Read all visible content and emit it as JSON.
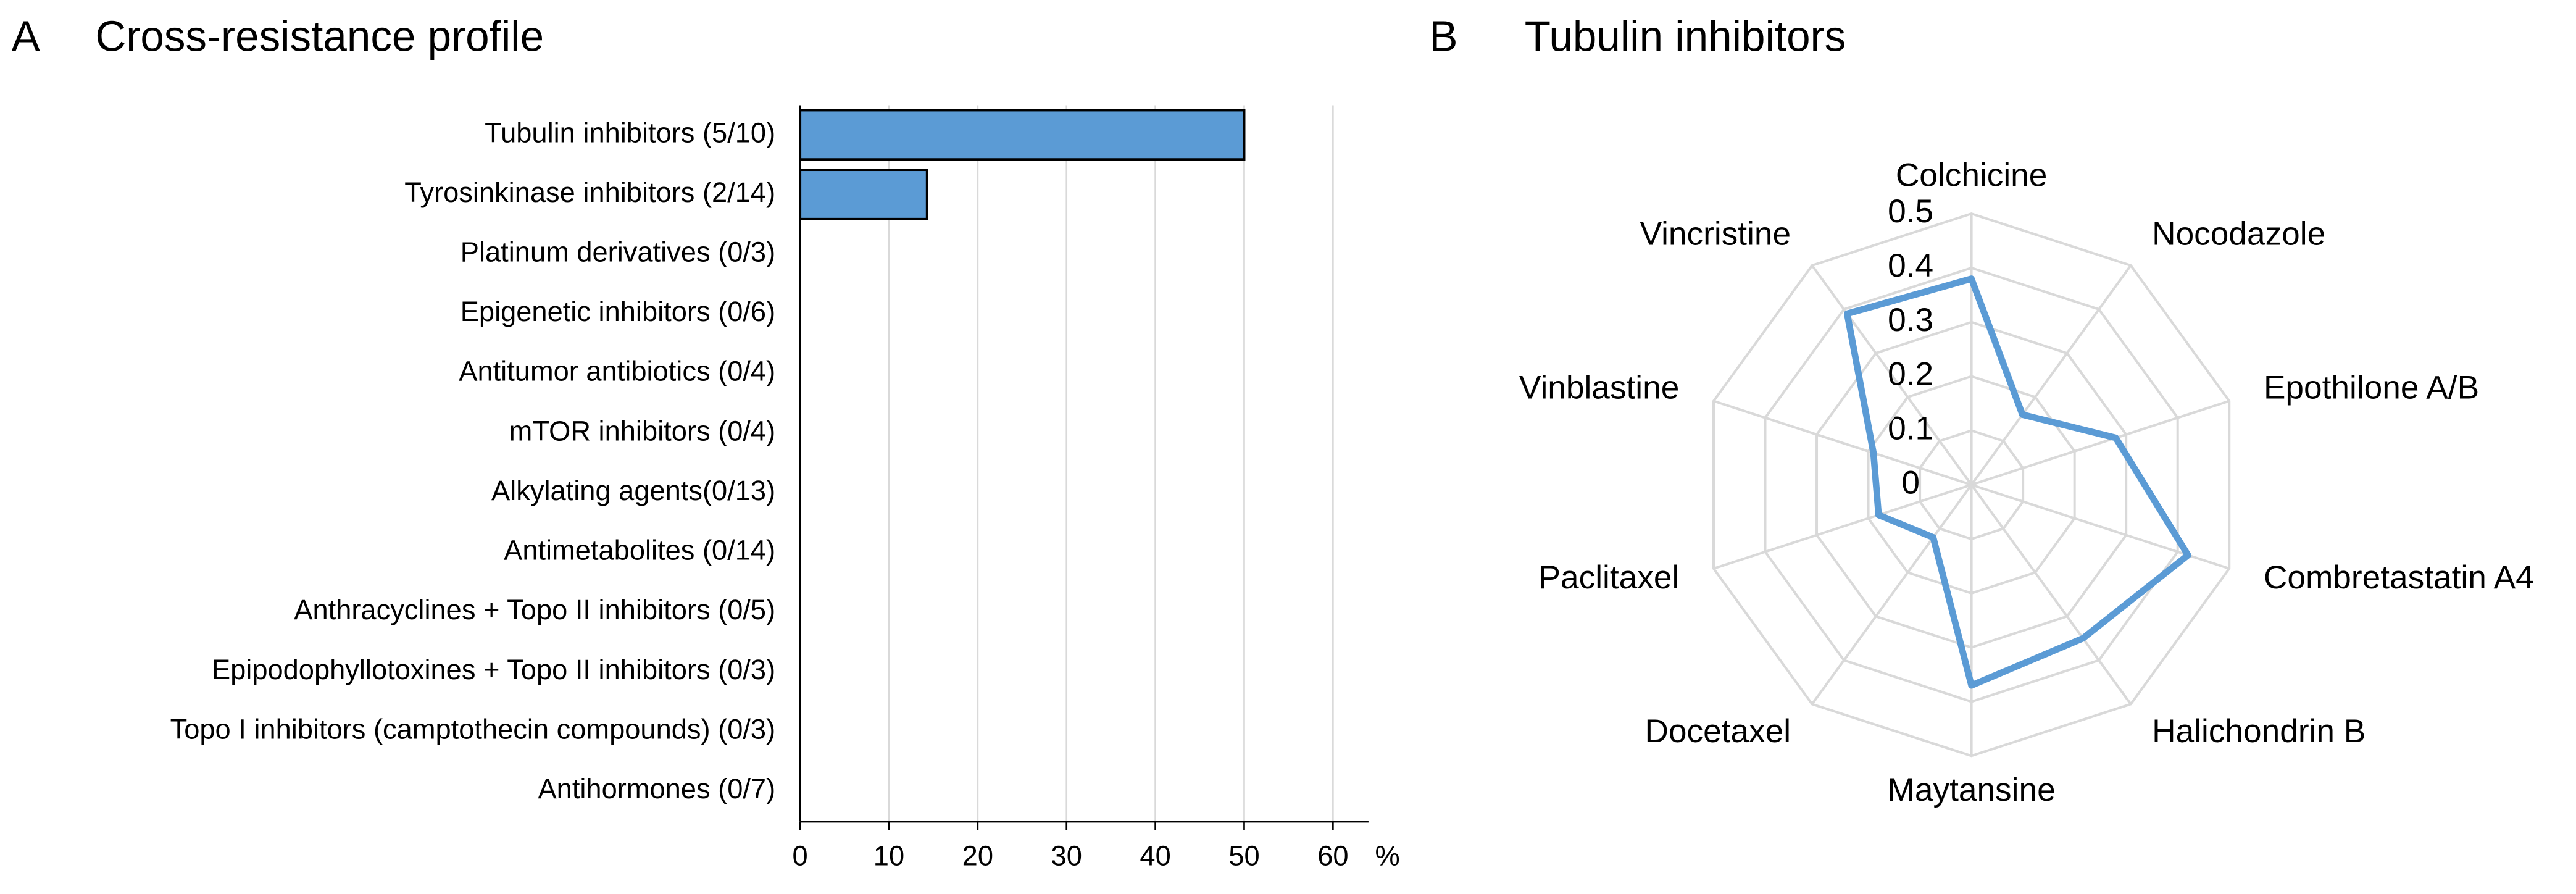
{
  "chart_data": [
    {
      "type": "bar",
      "orientation": "horizontal",
      "panel_label": "A",
      "title": "Cross-resistance profile",
      "categories": [
        "Tubulin inhibitors (5/10)",
        "Tyrosinkinase inhibitors (2/14)",
        "Platinum derivatives (0/3)",
        "Epigenetic inhibitors (0/6)",
        "Antitumor antibiotics (0/4)",
        "mTOR inhibitors (0/4)",
        "Alkylating agents(0/13)",
        "Antimetabolites (0/14)",
        "Anthracyclines + Topo II inhibitors (0/5)",
        "Epipodophyllotoxines + Topo II inhibitors (0/3)",
        "Topo I inhibitors (camptothecin compounds) (0/3)",
        "Antihormones (0/7)"
      ],
      "values": [
        50,
        14.3,
        0,
        0,
        0,
        0,
        0,
        0,
        0,
        0,
        0,
        0
      ],
      "color": "#5b9bd5",
      "xlabel": "%",
      "xlim": [
        0,
        64
      ],
      "xticks": [
        0,
        10,
        20,
        30,
        40,
        50,
        60
      ],
      "grid": true
    },
    {
      "type": "radar",
      "panel_label": "B",
      "title": "Tubulin inhibitors",
      "categories": [
        "Colchicine",
        "Nocodazole",
        "Epothilone A/B",
        "Combretastatin A4",
        "Halichondrin B",
        "Maytansine",
        "Docetaxel",
        "Paclitaxel",
        "Vinblastine",
        "Vincristine"
      ],
      "values": [
        0.38,
        0.16,
        0.28,
        0.42,
        0.35,
        0.37,
        0.12,
        0.18,
        0.19,
        0.39
      ],
      "color": "#5b9bd5",
      "rlim": [
        0,
        0.5
      ],
      "rticks": [
        0,
        0.1,
        0.2,
        0.3,
        0.4,
        0.5
      ],
      "grid": true
    }
  ]
}
